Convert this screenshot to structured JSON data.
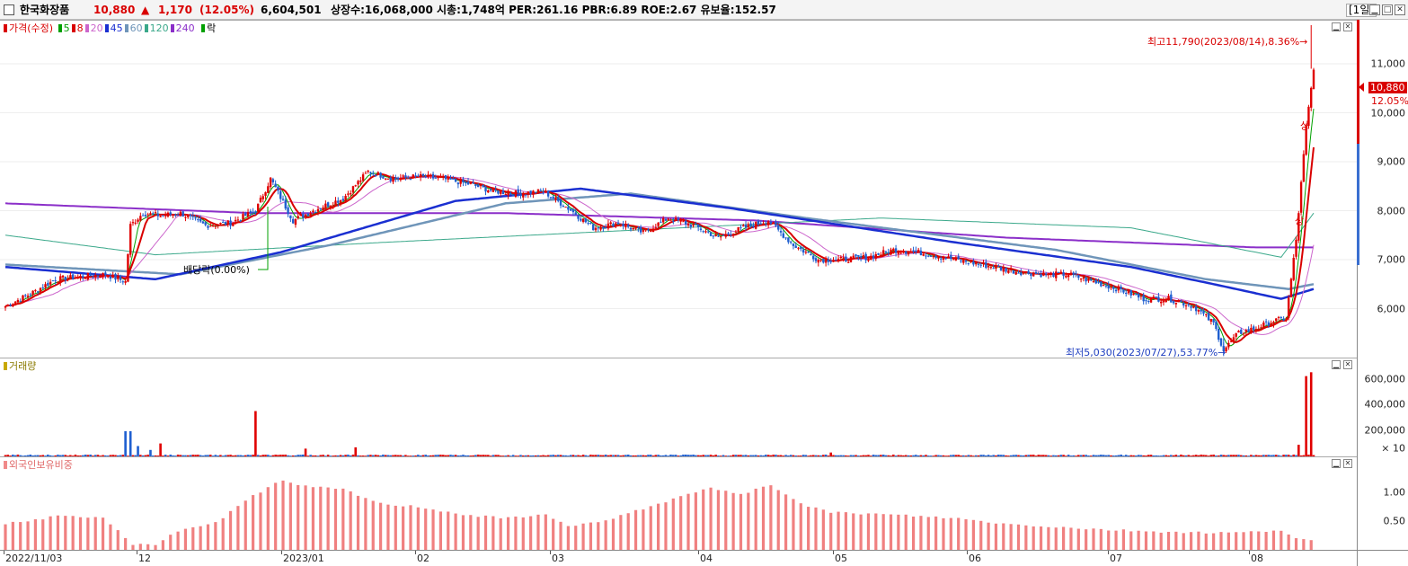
{
  "header": {
    "stock_name": "한국화장품",
    "price": "10,880",
    "change_arrow": "▲",
    "change": "1,170",
    "change_pct": "(12.05%)",
    "volume": "6,604,501",
    "stats": "상장수:16,068,000 시총:1,748억 PER:261.16 PBR:6.89 ROE:2.67 유보율:152.57",
    "period": "[1일]",
    "btn_min": "▁",
    "btn_max": "□",
    "btn_close": "✕"
  },
  "price_panel": {
    "legend_title": "가격(수정)",
    "ma": [
      {
        "label": "5",
        "color": "#00a000"
      },
      {
        "label": "8",
        "color": "#d90000"
      },
      {
        "label": "20",
        "color": "#cc66cc"
      },
      {
        "label": "45",
        "color": "#1a2fd1"
      },
      {
        "label": "60",
        "color": "#6f95b9"
      },
      {
        "label": "120",
        "color": "#3aa88a"
      },
      {
        "label": "240",
        "color": "#8b2fc9"
      }
    ],
    "legend_tail": "락",
    "high_annotation": "최고11,790(2023/08/14),8.36%→",
    "low_annotation": "최저5,030(2023/07/27),53.77%→",
    "dividend_annotation": "배당락(0.00%)",
    "limit_up_1": "상",
    "limit_up_2": "상",
    "y_labels": [
      "11,000",
      "10,000",
      "9,000",
      "8,000",
      "7,000",
      "6,000"
    ],
    "last_price": "10,880",
    "last_pct": "12.05%"
  },
  "volume_panel": {
    "legend_title": "거래량",
    "y_labels": [
      "600,000",
      "400,000",
      "200,000"
    ],
    "unit": "× 10"
  },
  "foreign_panel": {
    "legend_title": "외국인보유비중",
    "y_labels": [
      "1.00",
      "0.50"
    ]
  },
  "x_axis": [
    "2022/11/03",
    "12",
    "2023/01",
    "02",
    "03",
    "04",
    "05",
    "06",
    "07",
    "08"
  ],
  "chart_data": {
    "type": "bar",
    "title": "",
    "price": {
      "y_range": [
        5000,
        11900
      ],
      "high": 11790,
      "low": 5030,
      "last": 10880,
      "anchors": [
        [
          0,
          6050
        ],
        [
          10,
          6300
        ],
        [
          20,
          6600
        ],
        [
          30,
          6650
        ],
        [
          40,
          6700
        ],
        [
          48,
          6550
        ],
        [
          50,
          7700
        ],
        [
          55,
          7950
        ],
        [
          62,
          7900
        ],
        [
          70,
          7950
        ],
        [
          80,
          7700
        ],
        [
          90,
          7750
        ],
        [
          100,
          8000
        ],
        [
          106,
          8650
        ],
        [
          115,
          7800
        ],
        [
          125,
          8050
        ],
        [
          135,
          8250
        ],
        [
          145,
          8800
        ],
        [
          155,
          8650
        ],
        [
          165,
          8700
        ],
        [
          175,
          8650
        ],
        [
          185,
          8550
        ],
        [
          195,
          8400
        ],
        [
          205,
          8350
        ],
        [
          215,
          8400
        ],
        [
          225,
          8050
        ],
        [
          235,
          7650
        ],
        [
          245,
          7750
        ],
        [
          255,
          7550
        ],
        [
          265,
          7850
        ],
        [
          275,
          7700
        ],
        [
          285,
          7450
        ],
        [
          295,
          7650
        ],
        [
          305,
          7800
        ],
        [
          315,
          7300
        ],
        [
          325,
          7000
        ],
        [
          335,
          7000
        ],
        [
          345,
          7050
        ],
        [
          355,
          7200
        ],
        [
          365,
          7150
        ],
        [
          375,
          7050
        ],
        [
          385,
          6950
        ],
        [
          395,
          6850
        ],
        [
          405,
          6750
        ],
        [
          415,
          6700
        ],
        [
          425,
          6700
        ],
        [
          435,
          6550
        ],
        [
          445,
          6400
        ],
        [
          455,
          6200
        ],
        [
          465,
          6200
        ],
        [
          475,
          6050
        ],
        [
          483,
          5700
        ],
        [
          487,
          5150
        ],
        [
          493,
          5500
        ],
        [
          500,
          5600
        ],
        [
          507,
          5750
        ],
        [
          512,
          5800
        ],
        [
          516,
          7400
        ],
        [
          520,
          9700
        ],
        [
          523,
          10880
        ]
      ],
      "ma_anchors": {
        "ma240": [
          [
            0,
            8150
          ],
          [
            100,
            7950
          ],
          [
            200,
            7950
          ],
          [
            300,
            7800
          ],
          [
            400,
            7450
          ],
          [
            500,
            7250
          ],
          [
            523,
            7250
          ]
        ],
        "ma120": [
          [
            0,
            7500
          ],
          [
            60,
            7100
          ],
          [
            150,
            7350
          ],
          [
            250,
            7600
          ],
          [
            350,
            7850
          ],
          [
            450,
            7650
          ],
          [
            510,
            7050
          ],
          [
            523,
            7950
          ]
        ],
        "ma60": [
          [
            0,
            6900
          ],
          [
            70,
            6700
          ],
          [
            130,
            7300
          ],
          [
            200,
            8150
          ],
          [
            250,
            8350
          ],
          [
            320,
            7850
          ],
          [
            420,
            7200
          ],
          [
            480,
            6600
          ],
          [
            513,
            6400
          ],
          [
            523,
            6500
          ]
        ],
        "ma45": [
          [
            0,
            6850
          ],
          [
            60,
            6600
          ],
          [
            110,
            7150
          ],
          [
            180,
            8200
          ],
          [
            230,
            8450
          ],
          [
            290,
            8050
          ],
          [
            380,
            7350
          ],
          [
            450,
            6850
          ],
          [
            483,
            6500
          ],
          [
            510,
            6200
          ],
          [
            523,
            6400
          ]
        ]
      }
    },
    "volume": {
      "y_range": [
        0,
        680000
      ],
      "spikes": [
        [
          48,
          195000,
          "b"
        ],
        [
          50,
          195000,
          "b"
        ],
        [
          53,
          80000,
          "b"
        ],
        [
          58,
          50000,
          "b"
        ],
        [
          62,
          100000,
          "r"
        ],
        [
          100,
          350000,
          "r"
        ],
        [
          120,
          60000,
          "r"
        ],
        [
          140,
          70000,
          "r"
        ],
        [
          330,
          30000,
          "r"
        ],
        [
          517,
          90000,
          "r"
        ],
        [
          520,
          620000,
          "r"
        ],
        [
          522,
          650000,
          "r"
        ]
      ]
    },
    "foreign": {
      "y_range": [
        0,
        1.5
      ],
      "anchors": [
        [
          0,
          0.45
        ],
        [
          20,
          0.58
        ],
        [
          40,
          0.55
        ],
        [
          50,
          0.1
        ],
        [
          60,
          0.1
        ],
        [
          70,
          0.35
        ],
        [
          85,
          0.48
        ],
        [
          95,
          0.85
        ],
        [
          110,
          1.2
        ],
        [
          120,
          1.1
        ],
        [
          135,
          1.05
        ],
        [
          150,
          0.8
        ],
        [
          165,
          0.75
        ],
        [
          185,
          0.6
        ],
        [
          200,
          0.55
        ],
        [
          215,
          0.62
        ],
        [
          225,
          0.42
        ],
        [
          240,
          0.5
        ],
        [
          255,
          0.72
        ],
        [
          270,
          0.92
        ],
        [
          280,
          1.08
        ],
        [
          295,
          0.95
        ],
        [
          305,
          1.15
        ],
        [
          320,
          0.78
        ],
        [
          330,
          0.65
        ],
        [
          350,
          0.62
        ],
        [
          380,
          0.55
        ],
        [
          400,
          0.45
        ],
        [
          420,
          0.4
        ],
        [
          440,
          0.35
        ],
        [
          460,
          0.32
        ],
        [
          480,
          0.3
        ],
        [
          495,
          0.3
        ],
        [
          510,
          0.35
        ],
        [
          516,
          0.2
        ],
        [
          523,
          0.15
        ]
      ]
    }
  }
}
